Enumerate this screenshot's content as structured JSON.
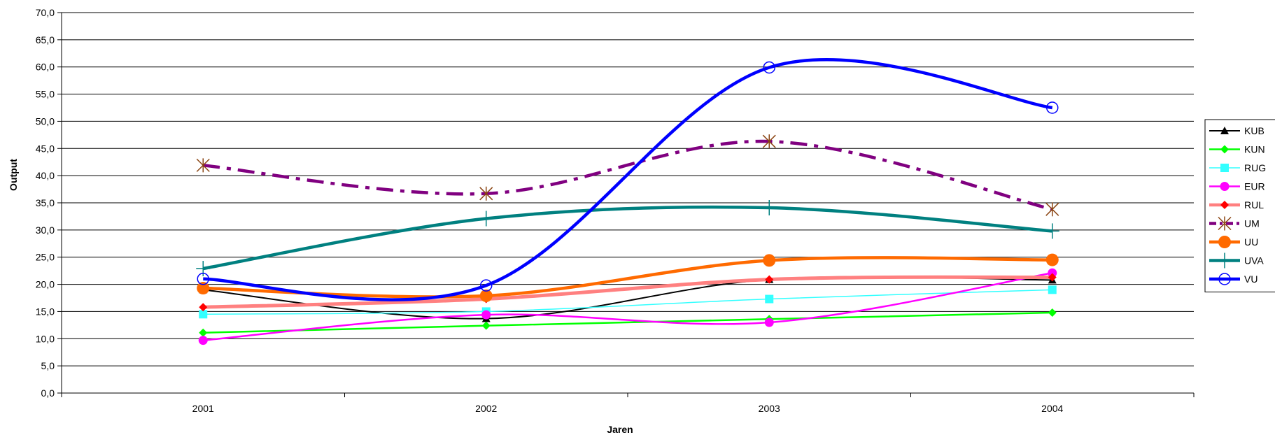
{
  "chart_data": {
    "type": "line",
    "title": "",
    "xlabel": "Jaren",
    "ylabel": "Output",
    "categories": [
      "2001",
      "2002",
      "2003",
      "2004"
    ],
    "ylim": [
      0,
      70
    ],
    "ytick_labels": [
      "0,0",
      "5,0",
      "10,0",
      "15,0",
      "20,0",
      "25,0",
      "30,0",
      "35,0",
      "40,0",
      "45,0",
      "50,0",
      "55,0",
      "60,0",
      "65,0",
      "70,0"
    ],
    "grid": "horizontal",
    "legend_position": "right",
    "series": [
      {
        "name": "KUB",
        "values": [
          19.0,
          13.7,
          20.9,
          20.8
        ],
        "color": "#000000",
        "marker": "triangle",
        "width": 2,
        "dash": ""
      },
      {
        "name": "KUN",
        "values": [
          11.1,
          12.4,
          13.6,
          14.8
        ],
        "color": "#00ff00",
        "marker": "diamond",
        "width": 2.5,
        "dash": ""
      },
      {
        "name": "RUG",
        "values": [
          14.5,
          15.0,
          17.3,
          19.0
        ],
        "color": "#33ffff",
        "marker": "square",
        "width": 1.5,
        "dash": ""
      },
      {
        "name": "EUR",
        "values": [
          9.7,
          14.4,
          13.0,
          22.1
        ],
        "color": "#ff00ff",
        "marker": "circle",
        "width": 2.5,
        "dash": ""
      },
      {
        "name": "RUL",
        "values": [
          15.8,
          17.3,
          20.9,
          21.3
        ],
        "color": "#ff8080",
        "marker": "diamond-red",
        "width": 5,
        "dash": ""
      },
      {
        "name": "UM",
        "values": [
          41.9,
          36.7,
          46.3,
          33.8
        ],
        "color": "#800080",
        "marker": "asterisk",
        "width": 4.5,
        "dash": "24 10 6 10"
      },
      {
        "name": "UU",
        "values": [
          19.3,
          17.9,
          24.4,
          24.5
        ],
        "color": "#ff6a00",
        "marker": "big-circle",
        "width": 4.5,
        "dash": ""
      },
      {
        "name": "UVA",
        "values": [
          22.9,
          32.1,
          34.1,
          29.8
        ],
        "color": "#008080",
        "marker": "plus",
        "width": 4.5,
        "dash": ""
      },
      {
        "name": "VU",
        "values": [
          21.0,
          19.8,
          59.9,
          52.5
        ],
        "color": "#0000ff",
        "marker": "open-circle",
        "width": 4.5,
        "dash": ""
      }
    ]
  }
}
